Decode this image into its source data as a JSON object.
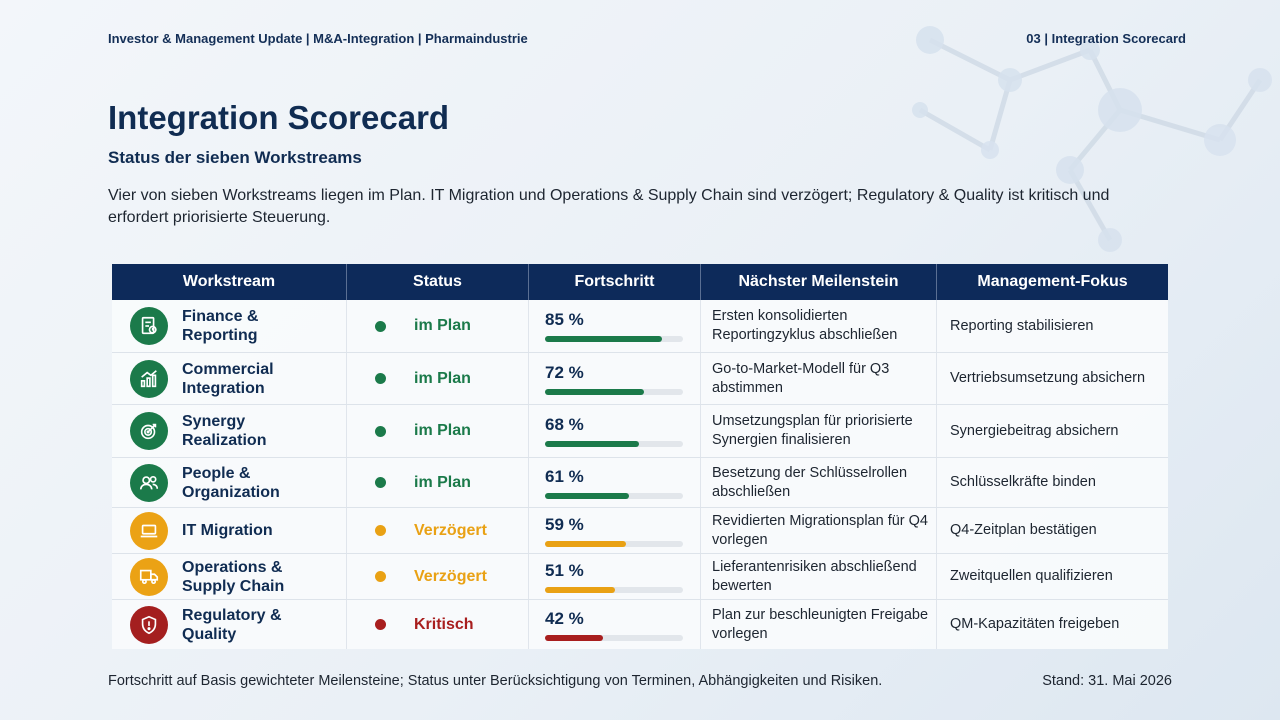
{
  "header": {
    "left": "Investor & Management Update | M&A-Integration | Pharmaindustrie",
    "right": "03 | Integration Scorecard"
  },
  "title": "Integration Scorecard",
  "subtitle": "Status der sieben Workstreams",
  "intro": "Vier von sieben Workstreams liegen im Plan. IT Migration und Operations & Supply Chain sind verzögert; Regulatory & Quality ist kritisch und erfordert priorisierte Steuerung.",
  "table": {
    "headers": [
      "Workstream",
      "Status",
      "Fortschritt",
      "Nächster Meilenstein",
      "Management-Fokus"
    ],
    "rows": [
      {
        "workstream": "Finance & Reporting",
        "icon": "finance-report-icon",
        "status": "im Plan",
        "status_color": "#1b7a4a",
        "progress_label": "85 %",
        "progress": 0.85,
        "milestone": "Ersten konsolidierten Reportingzyklus abschließen",
        "focus": "Reporting stabilisieren"
      },
      {
        "workstream": "Commercial Integration",
        "icon": "growth-chart-icon",
        "status": "im Plan",
        "status_color": "#1b7a4a",
        "progress_label": "72 %",
        "progress": 0.72,
        "milestone": "Go-to-Market-Modell für Q3 abstimmen",
        "focus": "Vertriebsumsetzung absichern"
      },
      {
        "workstream": "Synergy Realization",
        "icon": "target-icon",
        "status": "im Plan",
        "status_color": "#1b7a4a",
        "progress_label": "68 %",
        "progress": 0.68,
        "milestone": "Umsetzungsplan für priorisierte Synergien finalisieren",
        "focus": "Synergiebeitrag absichern"
      },
      {
        "workstream": "People & Organization",
        "icon": "people-icon",
        "status": "im Plan",
        "status_color": "#1b7a4a",
        "progress_label": "61 %",
        "progress": 0.61,
        "milestone": "Besetzung der Schlüsselrollen abschließen",
        "focus": "Schlüsselkräfte binden"
      },
      {
        "workstream": "IT Migration",
        "icon": "laptop-icon",
        "status": "Verzögert",
        "status_color": "#e9a114",
        "progress_label": "59 %",
        "progress": 0.59,
        "milestone": "Revidierten Migrationsplan für Q4 vorlegen",
        "focus": "Q4-Zeitplan bestätigen"
      },
      {
        "workstream": "Operations & Supply Chain",
        "icon": "truck-icon",
        "status": "Verzögert",
        "status_color": "#e9a114",
        "progress_label": "51 %",
        "progress": 0.51,
        "milestone": "Lieferantenrisiken abschließend bewerten",
        "focus": "Zweitquellen qualifizieren"
      },
      {
        "workstream": "Regulatory & Quality",
        "icon": "shield-alert-icon",
        "status": "Kritisch",
        "status_color": "#a81e1e",
        "progress_label": "42 %",
        "progress": 0.42,
        "milestone": "Plan zur beschleunigten Freigabe vorlegen",
        "focus": "QM-Kapazitäten freigeben"
      }
    ]
  },
  "footer": {
    "note": "Fortschritt auf Basis gewichteter Meilensteine; Status unter Berücksichtigung von Terminen, Abhängigkeiten und Risiken.",
    "date": "Stand: 31. Mai 2026"
  }
}
